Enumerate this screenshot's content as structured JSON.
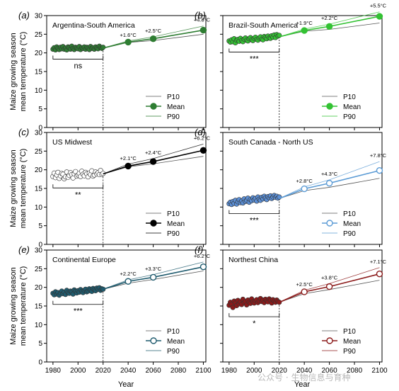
{
  "figure": {
    "ylabel_line1": "Maize growing season",
    "ylabel_line2": "mean temperature (°C)",
    "xlabel": "Year",
    "watermark": "公众号 · 生物信息与育种"
  },
  "legend": {
    "p10": "P10",
    "mean": "Mean",
    "p90": "P90"
  },
  "chart_data": [
    {
      "type": "line",
      "letter": "(a)",
      "title": "Argentina-South America",
      "color": "#2e7d32",
      "fill": "#2e7d32",
      "hist_fill": "#2e7d32",
      "xlim": [
        1975,
        2102
      ],
      "ylim": [
        0,
        30
      ],
      "xticks": [],
      "yticks": [
        0,
        5,
        10,
        15,
        20,
        25,
        30
      ],
      "historical": {
        "x": [
          1980,
          1981,
          1982,
          1983,
          1984,
          1985,
          1986,
          1987,
          1988,
          1989,
          1990,
          1991,
          1992,
          1993,
          1994,
          1995,
          1996,
          1997,
          1998,
          1999,
          2000,
          2001,
          2002,
          2003,
          2004,
          2005,
          2006,
          2007,
          2008,
          2009,
          2010,
          2011,
          2012,
          2013,
          2014,
          2015,
          2016,
          2017,
          2018,
          2019,
          2020
        ],
        "y": [
          21.0,
          21.4,
          20.8,
          21.6,
          21.2,
          20.9,
          21.5,
          21.1,
          21.7,
          21.0,
          21.3,
          20.8,
          21.6,
          21.4,
          21.0,
          21.8,
          21.2,
          20.9,
          21.5,
          21.3,
          21.1,
          21.7,
          20.9,
          21.4,
          21.2,
          21.6,
          21.0,
          21.5,
          21.3,
          20.9,
          21.7,
          21.2,
          21.4,
          21.0,
          21.6,
          21.3,
          21.1,
          21.8,
          21.4,
          21.2,
          21.5
        ]
      },
      "projection": {
        "x": [
          2020,
          2040,
          2060,
          2100
        ],
        "p10": [
          21.3,
          22.8,
          23.3,
          25.0
        ],
        "mean": [
          21.3,
          22.9,
          23.8,
          26.1
        ],
        "p90": [
          21.3,
          23.2,
          24.3,
          27.2
        ]
      },
      "annotations": [
        {
          "x": 2040,
          "text": "+1.6°C"
        },
        {
          "x": 2060,
          "text": "+2.5°C"
        },
        {
          "x": 2100,
          "text": "+4.8°C"
        }
      ],
      "significance": "ns"
    },
    {
      "type": "line",
      "letter": "(b)",
      "title": "Brazil-South America",
      "color": "#33c233",
      "fill": "#33c233",
      "hist_fill": "#33c233",
      "xlim": [
        1975,
        2102
      ],
      "ylim": [
        0,
        30
      ],
      "xticks": [],
      "yticks": [
        0,
        5,
        10,
        15,
        20,
        25,
        30
      ],
      "historical": {
        "x": [
          1980,
          1981,
          1982,
          1983,
          1984,
          1985,
          1986,
          1987,
          1988,
          1989,
          1990,
          1991,
          1992,
          1993,
          1994,
          1995,
          1996,
          1997,
          1998,
          1999,
          2000,
          2001,
          2002,
          2003,
          2004,
          2005,
          2006,
          2007,
          2008,
          2009,
          2010,
          2011,
          2012,
          2013,
          2014,
          2015,
          2016,
          2017,
          2018,
          2019,
          2020
        ],
        "y": [
          23.2,
          22.9,
          23.5,
          23.0,
          23.8,
          22.7,
          23.4,
          23.6,
          23.1,
          23.9,
          23.3,
          23.0,
          23.7,
          24.0,
          23.4,
          23.2,
          23.8,
          24.1,
          23.5,
          23.3,
          23.9,
          24.2,
          23.6,
          23.4,
          24.0,
          24.3,
          23.7,
          23.5,
          24.4,
          24.1,
          23.8,
          24.5,
          24.0,
          23.9,
          24.6,
          24.2,
          24.8,
          24.1,
          24.9,
          24.5,
          24.7
        ]
      },
      "projection": {
        "x": [
          2020,
          2040,
          2060,
          2100
        ],
        "p10": [
          24.3,
          25.8,
          26.3,
          28.0
        ],
        "mean": [
          24.3,
          26.0,
          27.1,
          29.8
        ],
        "p90": [
          24.3,
          26.4,
          27.7,
          31.0
        ]
      },
      "annotations": [
        {
          "x": 2040,
          "text": "+1.9°C"
        },
        {
          "x": 2060,
          "text": "+2.2°C"
        },
        {
          "x": 2100,
          "text": "+5.5°C"
        }
      ],
      "significance": "***"
    },
    {
      "type": "line",
      "letter": "(c)",
      "title": "US Midwest",
      "color": "#000000",
      "fill": "#000000",
      "hist_fill": "#ffffff",
      "xlim": [
        1975,
        2102
      ],
      "ylim": [
        0,
        30
      ],
      "xticks": [],
      "yticks": [
        0,
        5,
        10,
        15,
        20,
        25,
        30
      ],
      "historical": {
        "x": [
          1980,
          1981,
          1982,
          1983,
          1984,
          1985,
          1986,
          1987,
          1988,
          1989,
          1990,
          1991,
          1992,
          1993,
          1994,
          1995,
          1996,
          1997,
          1998,
          1999,
          2000,
          2001,
          2002,
          2003,
          2004,
          2005,
          2006,
          2007,
          2008,
          2009,
          2010,
          2011,
          2012,
          2013,
          2014,
          2015,
          2016,
          2017,
          2018,
          2019,
          2020
        ],
        "y": [
          18.2,
          19.1,
          17.9,
          18.6,
          19.3,
          17.7,
          18.4,
          19.0,
          18.8,
          17.6,
          18.1,
          19.4,
          18.0,
          18.5,
          19.2,
          18.7,
          17.8,
          18.9,
          19.5,
          18.3,
          18.6,
          19.0,
          18.2,
          19.6,
          18.8,
          18.4,
          19.3,
          18.9,
          18.1,
          19.1,
          18.7,
          19.7,
          18.3,
          18.6,
          19.4,
          18.9,
          19.2,
          18.7,
          19.8,
          18.8,
          19.0
        ]
      },
      "projection": {
        "x": [
          2020,
          2040,
          2060,
          2100
        ],
        "p10": [
          18.9,
          20.8,
          21.6,
          23.6
        ],
        "mean": [
          18.9,
          21.0,
          22.2,
          25.2
        ],
        "p90": [
          18.9,
          21.5,
          23.0,
          26.9
        ]
      },
      "annotations": [
        {
          "x": 2040,
          "text": "+2.1°C"
        },
        {
          "x": 2060,
          "text": "+2.4°C"
        },
        {
          "x": 2100,
          "text": "+6.2°C"
        }
      ],
      "significance": "**"
    },
    {
      "type": "line",
      "letter": "(d)",
      "title": "South  Canada - North US",
      "color": "#5b9bd5",
      "fill": "#ffffff",
      "hist_fill": "#5b8fd6",
      "xlim": [
        1975,
        2102
      ],
      "ylim": [
        0,
        30
      ],
      "xticks": [],
      "yticks": [
        0,
        5,
        10,
        15,
        20,
        25,
        30
      ],
      "historical": {
        "x": [
          1980,
          1981,
          1982,
          1983,
          1984,
          1985,
          1986,
          1987,
          1988,
          1989,
          1990,
          1991,
          1992,
          1993,
          1994,
          1995,
          1996,
          1997,
          1998,
          1999,
          2000,
          2001,
          2002,
          2003,
          2004,
          2005,
          2006,
          2007,
          2008,
          2009,
          2010,
          2011,
          2012,
          2013,
          2014,
          2015,
          2016,
          2017,
          2018,
          2019,
          2020
        ],
        "y": [
          10.9,
          11.3,
          10.7,
          11.5,
          11.0,
          11.8,
          10.8,
          11.4,
          12.0,
          11.2,
          11.6,
          11.1,
          12.2,
          11.5,
          11.8,
          12.4,
          11.3,
          12.0,
          11.7,
          12.5,
          11.9,
          12.3,
          11.6,
          12.7,
          12.1,
          11.8,
          12.6,
          12.2,
          12.9,
          12.4,
          12.0,
          12.8,
          12.5,
          13.0,
          12.3,
          12.7,
          13.1,
          12.6,
          12.9,
          12.4,
          12.7
        ]
      },
      "projection": {
        "x": [
          2020,
          2040,
          2060,
          2100
        ],
        "p10": [
          12.3,
          14.4,
          15.3,
          17.7
        ],
        "mean": [
          12.3,
          14.9,
          16.4,
          19.8
        ],
        "p90": [
          12.3,
          15.4,
          17.3,
          22.2
        ]
      },
      "annotations": [
        {
          "x": 2040,
          "text": "+2.8°C"
        },
        {
          "x": 2060,
          "text": "+4.3°C"
        },
        {
          "x": 2100,
          "text": "+7.8°C"
        }
      ],
      "significance": "***"
    },
    {
      "type": "line",
      "letter": "(e)",
      "title": "Continental Europe",
      "color": "#1f5b6e",
      "fill": "#ffffff",
      "hist_fill": "#1f5b6e",
      "xlim": [
        1975,
        2102
      ],
      "ylim": [
        0,
        30
      ],
      "xticks": [
        1980,
        2000,
        2020,
        2040,
        2060,
        2080,
        2100
      ],
      "yticks": [
        0,
        5,
        10,
        15,
        20,
        25,
        30
      ],
      "historical": {
        "x": [
          1980,
          1981,
          1982,
          1983,
          1984,
          1985,
          1986,
          1987,
          1988,
          1989,
          1990,
          1991,
          1992,
          1993,
          1994,
          1995,
          1996,
          1997,
          1998,
          1999,
          2000,
          2001,
          2002,
          2003,
          2004,
          2005,
          2006,
          2007,
          2008,
          2009,
          2010,
          2011,
          2012,
          2013,
          2014,
          2015,
          2016,
          2017,
          2018,
          2019,
          2020
        ],
        "y": [
          18.4,
          18.0,
          18.8,
          18.2,
          18.6,
          17.9,
          18.5,
          19.0,
          18.3,
          18.7,
          18.1,
          19.2,
          18.6,
          18.4,
          19.0,
          18.8,
          18.2,
          19.3,
          18.9,
          18.5,
          19.1,
          18.7,
          19.4,
          18.9,
          18.6,
          19.2,
          19.5,
          18.8,
          19.0,
          19.6,
          19.3,
          18.9,
          19.7,
          19.4,
          19.1,
          19.8,
          19.5,
          19.9,
          19.2,
          19.6,
          19.5
        ]
      },
      "projection": {
        "x": [
          2020,
          2040,
          2060,
          2100
        ],
        "p10": [
          19.5,
          21.1,
          22.1,
          24.4
        ],
        "mean": [
          19.5,
          21.6,
          22.7,
          25.5
        ],
        "p90": [
          19.5,
          22.0,
          23.4,
          26.8
        ]
      },
      "annotations": [
        {
          "x": 2040,
          "text": "+2.2°C"
        },
        {
          "x": 2060,
          "text": "+3.3°C"
        },
        {
          "x": 2100,
          "text": "+6.2°C"
        }
      ],
      "significance": "***"
    },
    {
      "type": "line",
      "letter": "(f)",
      "title": "Northest China",
      "color": "#8b1a1a",
      "fill": "#ffffff",
      "hist_fill": "#8b1a1a",
      "xlim": [
        1975,
        2102
      ],
      "ylim": [
        0,
        30
      ],
      "xticks": [
        1980,
        2000,
        2020,
        2040,
        2060,
        2080,
        2100
      ],
      "yticks": [
        0,
        5,
        10,
        15,
        20,
        25,
        30
      ],
      "historical": {
        "x": [
          1980,
          1981,
          1982,
          1983,
          1984,
          1985,
          1986,
          1987,
          1988,
          1989,
          1990,
          1991,
          1992,
          1993,
          1994,
          1995,
          1996,
          1997,
          1998,
          1999,
          2000,
          2001,
          2002,
          2003,
          2004,
          2005,
          2006,
          2007,
          2008,
          2009,
          2010,
          2011,
          2012,
          2013,
          2014,
          2015,
          2016,
          2017,
          2018,
          2019,
          2020
        ],
        "y": [
          15.2,
          16.0,
          15.5,
          14.6,
          16.3,
          15.8,
          15.1,
          16.5,
          15.6,
          16.1,
          15.4,
          16.8,
          15.9,
          16.2,
          15.3,
          16.6,
          16.0,
          15.7,
          16.9,
          16.1,
          15.8,
          16.4,
          16.7,
          15.9,
          16.3,
          17.0,
          16.2,
          16.6,
          15.9,
          16.8,
          16.4,
          16.1,
          16.9,
          16.5,
          15.8,
          16.7,
          16.3,
          16.0,
          16.6,
          16.2,
          16.0
        ]
      },
      "projection": {
        "x": [
          2020,
          2040,
          2060,
          2100
        ],
        "p10": [
          16.0,
          18.3,
          19.4,
          21.9
        ],
        "mean": [
          16.0,
          18.8,
          20.2,
          23.6
        ],
        "p90": [
          16.0,
          19.2,
          21.0,
          25.3
        ]
      },
      "annotations": [
        {
          "x": 2040,
          "text": "+2.5°C"
        },
        {
          "x": 2060,
          "text": "+3.8°C"
        },
        {
          "x": 2100,
          "text": "+7.1°C"
        }
      ],
      "significance": "*"
    }
  ]
}
